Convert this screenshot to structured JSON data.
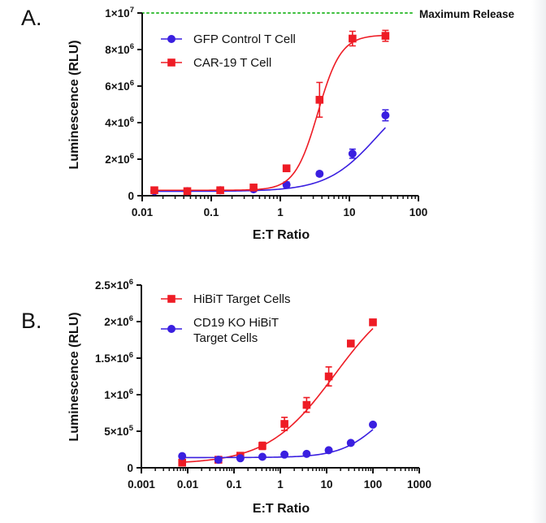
{
  "colors": {
    "red": "#ee1c25",
    "blue": "#3a1fe0",
    "max_release_line": "#3cbf3c",
    "axis": "#111111"
  },
  "chart_data": [
    {
      "panel": "A.",
      "type": "scatter",
      "xscale": "log",
      "xlim": [
        0.01,
        100
      ],
      "ylim": [
        0,
        10000000
      ],
      "xlabel": "E:T Ratio",
      "ylabel": "Luminescence (RLU)",
      "x_ticks": [
        {
          "value": 0.01,
          "label": "0.01"
        },
        {
          "value": 0.1,
          "label": "0.1"
        },
        {
          "value": 1,
          "label": "1"
        },
        {
          "value": 10,
          "label": "10"
        },
        {
          "value": 100,
          "label": "100"
        }
      ],
      "y_ticks": [
        {
          "value": 0,
          "base": "0",
          "exp": ""
        },
        {
          "value": 2000000,
          "base": "2×10",
          "exp": "6"
        },
        {
          "value": 4000000,
          "base": "4×10",
          "exp": "6"
        },
        {
          "value": 6000000,
          "base": "6×10",
          "exp": "6"
        },
        {
          "value": 8000000,
          "base": "8×10",
          "exp": "6"
        },
        {
          "value": 10000000,
          "base": "1×10",
          "exp": "7"
        }
      ],
      "reference_line": {
        "label": "Maximum Release",
        "y": 10000000,
        "style": "dotted"
      },
      "legend_position": "top-left",
      "series": [
        {
          "name": "GFP Control T Cell",
          "marker": "circle",
          "color": "#3a1fe0",
          "x": [
            0.015,
            0.045,
            0.135,
            0.41,
            1.23,
            3.7,
            11.1,
            33.3
          ],
          "y": [
            250000,
            250000,
            300000,
            350000,
            600000,
            1200000,
            2300000,
            4400000
          ],
          "err": [
            60000,
            50000,
            50000,
            60000,
            150000,
            120000,
            250000,
            300000
          ],
          "fit": {
            "bottom": 240000,
            "top": 6200000,
            "ec50": 25,
            "hill": 1.2
          }
        },
        {
          "name": "CAR-19 T Cell",
          "marker": "square",
          "color": "#ee1c25",
          "x": [
            0.015,
            0.045,
            0.135,
            0.41,
            1.23,
            3.7,
            11.1,
            33.3
          ],
          "y": [
            300000,
            250000,
            300000,
            450000,
            1500000,
            5250000,
            8600000,
            8750000
          ],
          "err": [
            50000,
            50000,
            50000,
            80000,
            100000,
            950000,
            400000,
            300000
          ],
          "fit": {
            "bottom": 300000,
            "top": 8800000,
            "ec50": 3.5,
            "hill": 2.6
          }
        }
      ]
    },
    {
      "panel": "B.",
      "type": "scatter",
      "xscale": "log",
      "xlim": [
        0.001,
        1000
      ],
      "ylim": [
        0,
        2500000
      ],
      "xlabel": "E:T Ratio",
      "ylabel": "Luminescence (RLU)",
      "x_ticks": [
        {
          "value": 0.001,
          "label": "0.001"
        },
        {
          "value": 0.01,
          "label": "0.01"
        },
        {
          "value": 0.1,
          "label": "0.1"
        },
        {
          "value": 1,
          "label": "1"
        },
        {
          "value": 10,
          "label": "10"
        },
        {
          "value": 100,
          "label": "100"
        },
        {
          "value": 1000,
          "label": "1000"
        }
      ],
      "y_ticks": [
        {
          "value": 0,
          "base": "0",
          "exp": ""
        },
        {
          "value": 500000,
          "base": "5×10",
          "exp": "5"
        },
        {
          "value": 1000000,
          "base": "1×10",
          "exp": "6"
        },
        {
          "value": 1500000,
          "base": "1.5×10",
          "exp": "6"
        },
        {
          "value": 2000000,
          "base": "2×10",
          "exp": "6"
        },
        {
          "value": 2500000,
          "base": "2.5×10",
          "exp": "6"
        }
      ],
      "legend_position": "top-left",
      "series": [
        {
          "name": "HiBiT Target Cells",
          "marker": "square",
          "color": "#ee1c25",
          "x": [
            0.0076,
            0.046,
            0.137,
            0.41,
            1.23,
            3.7,
            11.1,
            33.3,
            100
          ],
          "y": [
            70000,
            110000,
            165000,
            300000,
            600000,
            860000,
            1250000,
            1700000,
            1990000
          ],
          "err": [
            20000,
            20000,
            25000,
            50000,
            90000,
            100000,
            130000,
            30000,
            20000
          ],
          "fit": {
            "bottom": 50000,
            "top": 2500000,
            "ec50": 15,
            "hill": 0.6
          }
        },
        {
          "name": "CD19 KO HiBiT Target Cells",
          "name_lines": [
            "CD19 KO HiBiT",
            "Target Cells"
          ],
          "marker": "circle",
          "color": "#3a1fe0",
          "x": [
            0.0076,
            0.046,
            0.137,
            0.41,
            1.23,
            3.7,
            11.1,
            33.3,
            100
          ],
          "y": [
            160000,
            110000,
            130000,
            150000,
            180000,
            190000,
            240000,
            340000,
            590000
          ],
          "err": [
            10000,
            10000,
            10000,
            10000,
            10000,
            10000,
            10000,
            10000,
            10000
          ],
          "fit": {
            "bottom": 140000,
            "top": 1100000,
            "ec50": 150,
            "hill": 1.0
          }
        }
      ]
    }
  ]
}
